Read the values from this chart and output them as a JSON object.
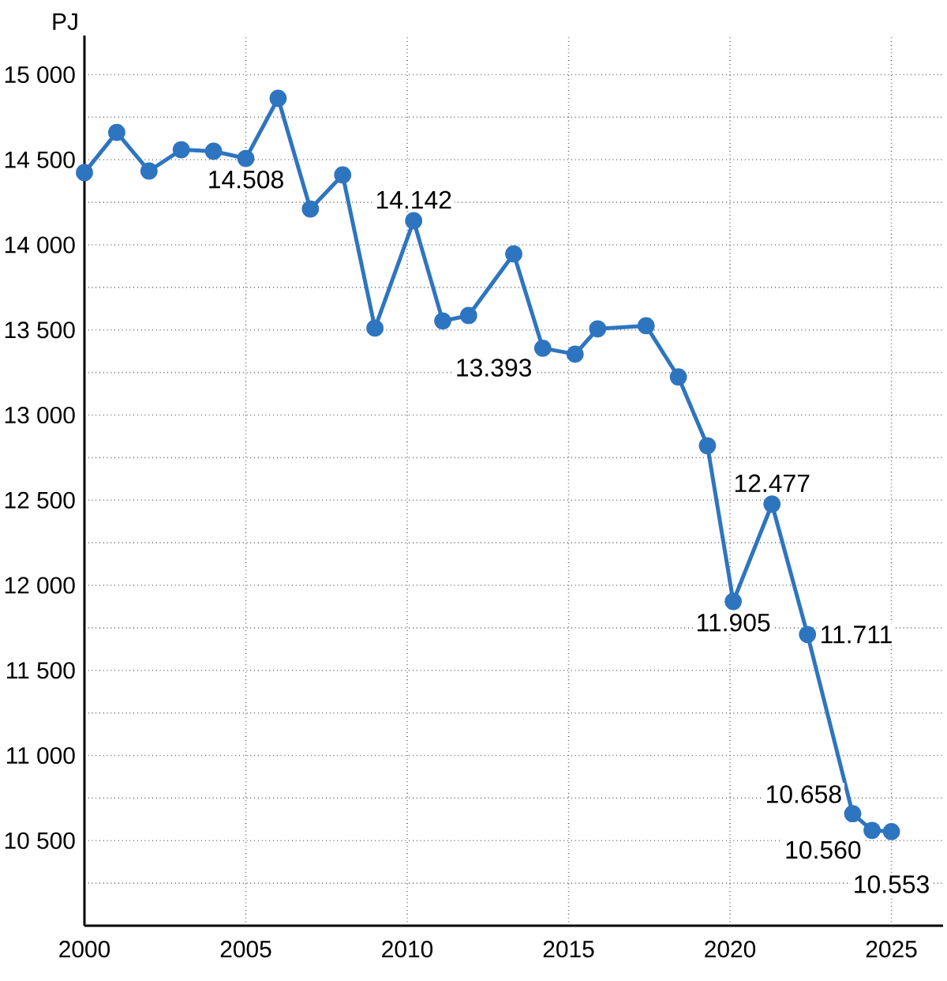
{
  "chart_data": {
    "type": "line",
    "ylabel": "PJ",
    "x": [
      2000,
      2001,
      2002,
      2003,
      2004,
      2005,
      2006,
      2007,
      2008,
      2009,
      2010.2,
      2011.1,
      2011.9,
      2013.3,
      2014.2,
      2015.2,
      2015.9,
      2017.4,
      2018.4,
      2019.3,
      2020.1,
      2021.3,
      2022.4,
      2023.8,
      2024.4,
      2025
    ],
    "series": [
      {
        "color": "#2e75c0",
        "marker": "circle",
        "line_style": "solid",
        "values": [
          14425,
          14661,
          14434,
          14559,
          14550,
          14508,
          14861,
          14211,
          14411,
          13511,
          14142,
          13553,
          13585,
          13947,
          13393,
          13358,
          13507,
          13525,
          13224,
          12820,
          11905,
          12477,
          11711,
          10658,
          10560,
          10553
        ],
        "value_labels": [
          null,
          null,
          null,
          null,
          null,
          "14.508",
          null,
          null,
          null,
          null,
          "14.142",
          null,
          null,
          null,
          "13.393",
          null,
          null,
          null,
          null,
          null,
          "11.905",
          "12.477",
          "11.711",
          "10.658",
          "10.560",
          "10.553"
        ]
      }
    ],
    "xlim": [
      2000,
      2026.6
    ],
    "ylim": [
      10000,
      15230
    ],
    "xticks": [
      2000,
      2005,
      2010,
      2015,
      2020,
      2025
    ],
    "yticks": [
      {
        "value": 10250,
        "label": null
      },
      {
        "value": 10500,
        "label": "10 500"
      },
      {
        "value": 10750,
        "label": null
      },
      {
        "value": 11000,
        "label": "11 000"
      },
      {
        "value": 11250,
        "label": null
      },
      {
        "value": 11500,
        "label": "11 500"
      },
      {
        "value": 11750,
        "label": null
      },
      {
        "value": 12000,
        "label": "12 000"
      },
      {
        "value": 12250,
        "label": null
      },
      {
        "value": 12500,
        "label": "12 500"
      },
      {
        "value": 12750,
        "label": null
      },
      {
        "value": 13000,
        "label": "13 000"
      },
      {
        "value": 13250,
        "label": null
      },
      {
        "value": 13500,
        "label": "13 500"
      },
      {
        "value": 13750,
        "label": null
      },
      {
        "value": 14000,
        "label": "14 000"
      },
      {
        "value": 14250,
        "label": null
      },
      {
        "value": 14500,
        "label": "14 500"
      },
      {
        "value": 14750,
        "label": null
      },
      {
        "value": 15000,
        "label": "15 000"
      }
    ],
    "grid": true
  }
}
